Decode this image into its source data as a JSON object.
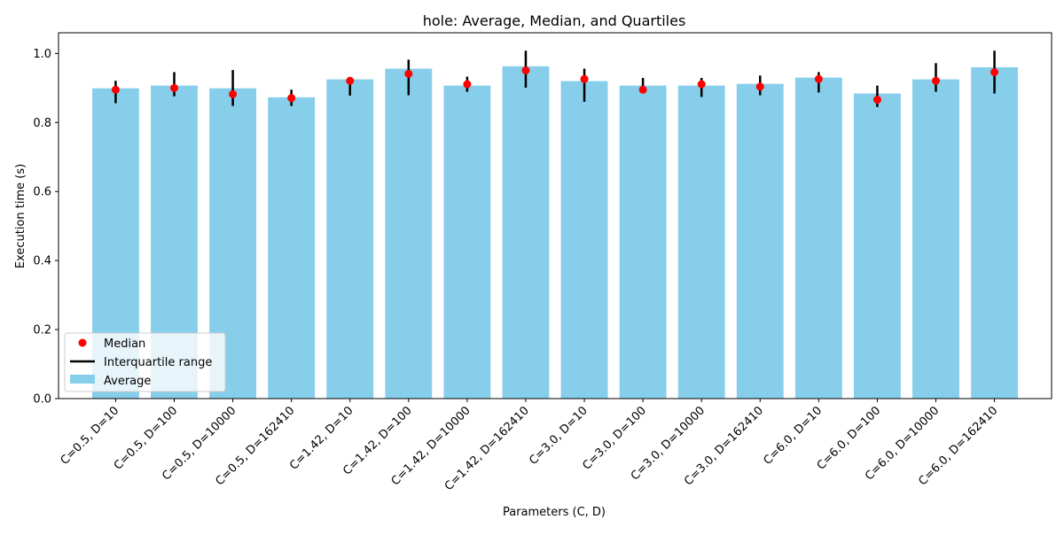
{
  "chart_data": {
    "type": "bar",
    "title": "hole: Average, Median, and Quartiles",
    "xlabel": "Parameters (C, D)",
    "ylabel": "Execution time (s)",
    "ylim": [
      0,
      1.06
    ],
    "yticks": [
      "0.0",
      "0.2",
      "0.4",
      "0.6",
      "0.8",
      "1.0"
    ],
    "grid": false,
    "legend_position": "lower-left",
    "colors": {
      "average": "#87ceeb",
      "median": "#ff0000",
      "iqr": "#000000"
    },
    "categories": [
      "C=0.5, D=10",
      "C=0.5, D=100",
      "C=0.5, D=10000",
      "C=0.5, D=162410",
      "C=1.42, D=10",
      "C=1.42, D=100",
      "C=1.42, D=10000",
      "C=1.42, D=162410",
      "C=3.0, D=10",
      "C=3.0, D=100",
      "C=3.0, D=10000",
      "C=3.0, D=162410",
      "C=6.0, D=10",
      "C=6.0, D=100",
      "C=6.0, D=10000",
      "C=6.0, D=162410"
    ],
    "series": [
      {
        "name": "Average",
        "kind": "bar",
        "values": [
          0.899,
          0.907,
          0.899,
          0.873,
          0.925,
          0.956,
          0.907,
          0.963,
          0.92,
          0.907,
          0.907,
          0.912,
          0.93,
          0.884,
          0.925,
          0.96
        ]
      },
      {
        "name": "Median",
        "kind": "point",
        "values": [
          0.895,
          0.9,
          0.882,
          0.871,
          0.921,
          0.941,
          0.911,
          0.951,
          0.926,
          0.895,
          0.911,
          0.904,
          0.926,
          0.866,
          0.921,
          0.946
        ]
      },
      {
        "name": "Interquartile range",
        "kind": "range",
        "low": [
          0.856,
          0.876,
          0.848,
          0.848,
          0.878,
          0.879,
          0.889,
          0.901,
          0.86,
          0.887,
          0.874,
          0.879,
          0.887,
          0.845,
          0.889,
          0.884
        ],
        "high": [
          0.921,
          0.946,
          0.952,
          0.895,
          0.925,
          0.982,
          0.933,
          1.008,
          0.956,
          0.929,
          0.929,
          0.936,
          0.946,
          0.907,
          0.972,
          1.008
        ]
      }
    ]
  }
}
